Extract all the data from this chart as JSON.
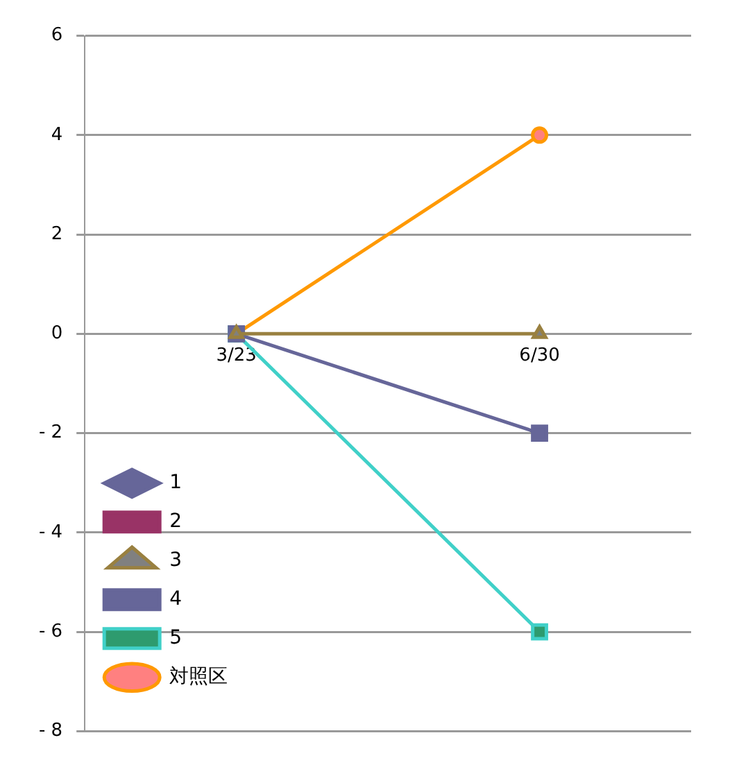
{
  "chart_data": {
    "type": "line",
    "categories": [
      "3/23",
      "6/30"
    ],
    "series": [
      {
        "name": "1",
        "color": "#666699",
        "marker": "diamond",
        "values": [
          null,
          null
        ]
      },
      {
        "name": "2",
        "color": "#993366",
        "marker": "square",
        "values": [
          null,
          null
        ]
      },
      {
        "name": "3",
        "color": "#998040",
        "marker": "triangle",
        "values": [
          0,
          0
        ]
      },
      {
        "name": "4",
        "color": "#666699",
        "marker": "square",
        "values": [
          0,
          -2
        ]
      },
      {
        "name": "5",
        "color": "#40d0c8",
        "marker": "square",
        "values": [
          0,
          -6
        ]
      },
      {
        "name": "対照区",
        "color": "#ff9900",
        "marker": "circle",
        "values": [
          0,
          4
        ]
      }
    ],
    "ylim": [
      -8,
      6
    ],
    "yticks": [
      -8,
      -6,
      -4,
      -2,
      0,
      2,
      4,
      6
    ],
    "grid": "y",
    "legend": "bottom left"
  }
}
